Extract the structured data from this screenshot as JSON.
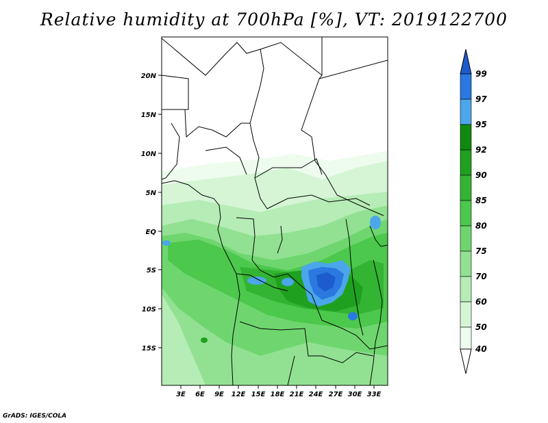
{
  "title": "Relative humidity at 700hPa [%], VT: 2019122700",
  "credit": "GrADS: IGES/COLA",
  "map": {
    "lat_ticks": [
      "20N",
      "15N",
      "10N",
      "5N",
      "EQ",
      "5S",
      "10S",
      "15S"
    ],
    "lon_ticks": [
      "3E",
      "6E",
      "9E",
      "12E",
      "15E",
      "18E",
      "21E",
      "24E",
      "27E",
      "30E",
      "33E"
    ]
  },
  "legend": {
    "labels": [
      "99",
      "97",
      "95",
      "92",
      "90",
      "85",
      "80",
      "75",
      "70",
      "60",
      "50",
      "40"
    ],
    "colors": {
      "99": "#1c5ccc",
      "97": "#2a78e0",
      "95": "#4ba6ea",
      "92": "#0f8a0f",
      "90": "#1fa01f",
      "85": "#33b433",
      "80": "#4cc84c",
      "75": "#6fd66f",
      "70": "#92e192",
      "60": "#b6ecb6",
      "50": "#d5f5d5",
      "40": "#eefcee"
    }
  }
}
